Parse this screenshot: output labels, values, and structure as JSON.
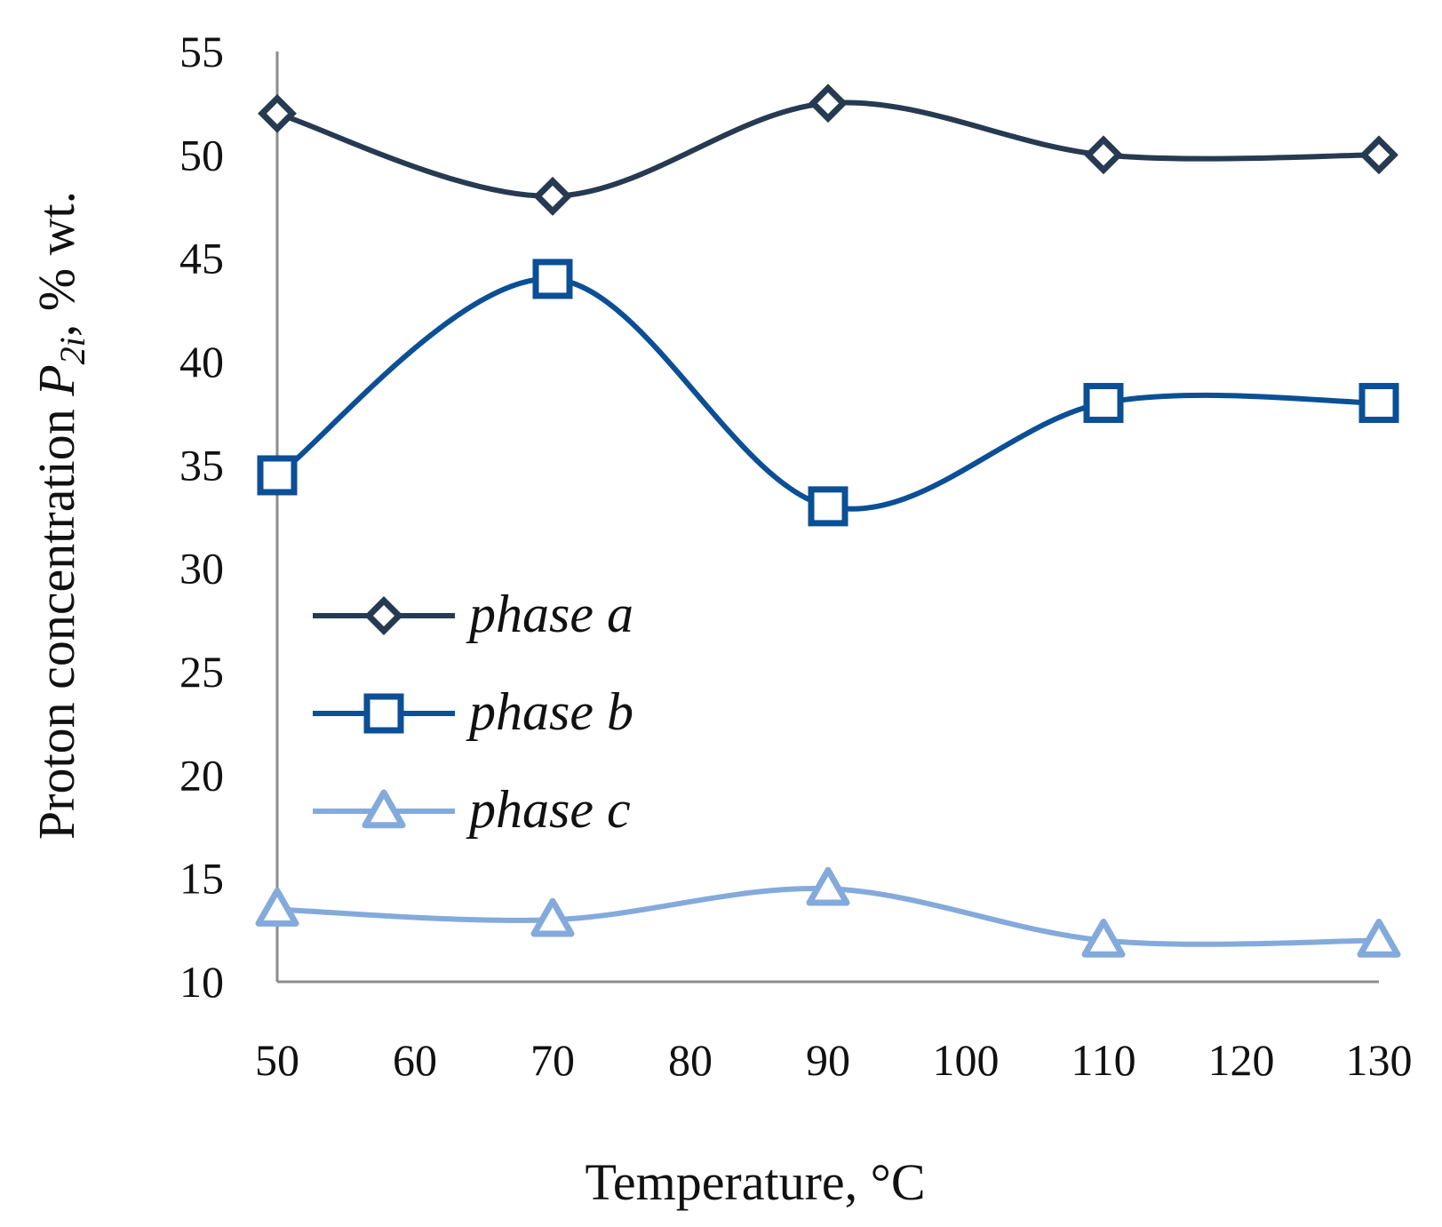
{
  "chart_data": {
    "type": "line",
    "smooth": true,
    "x": [
      50,
      70,
      90,
      110,
      130
    ],
    "xlim": [
      50,
      130
    ],
    "ylim": [
      10,
      55
    ],
    "x_ticks": [
      "50",
      "60",
      "70",
      "80",
      "90",
      "100",
      "110",
      "120",
      "130"
    ],
    "x_tick_values": [
      50,
      60,
      70,
      80,
      90,
      100,
      110,
      120,
      130
    ],
    "y_ticks": [
      "10",
      "15",
      "20",
      "25",
      "30",
      "35",
      "40",
      "45",
      "50",
      "55"
    ],
    "y_tick_values": [
      10,
      15,
      20,
      25,
      30,
      35,
      40,
      45,
      50,
      55
    ],
    "xlabel": "Temperature, °C",
    "ylabel": {
      "prefix": "Proton concentration ",
      "symbol": "P",
      "subscript": "2i",
      "suffix": ", % wt."
    },
    "grid": false,
    "legend_position": "left-middle",
    "series": [
      {
        "name": "phase a",
        "marker": "diamond",
        "color": "#263a52",
        "values": [
          52,
          48,
          52.5,
          50,
          50
        ]
      },
      {
        "name": "phase b",
        "marker": "square",
        "color": "#0b4f96",
        "values": [
          34.5,
          44,
          33,
          38,
          38
        ]
      },
      {
        "name": "phase c",
        "marker": "triangle",
        "color": "#84aadc",
        "values": [
          13.5,
          13,
          14.5,
          12,
          12
        ]
      }
    ]
  }
}
